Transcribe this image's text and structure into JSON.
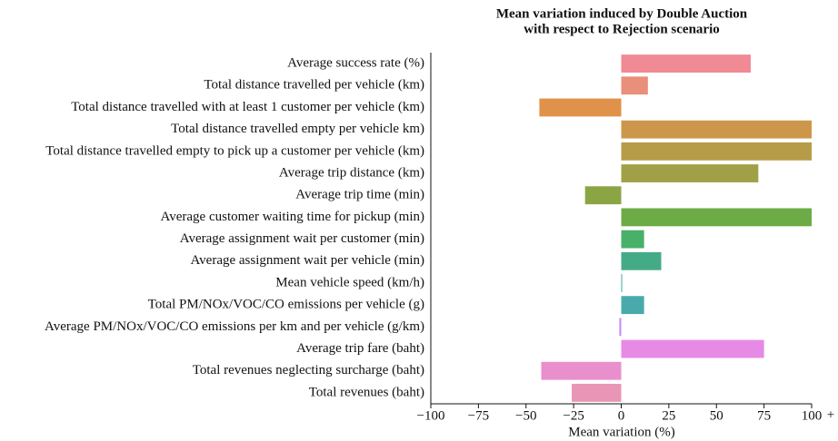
{
  "chart_data": {
    "type": "barh",
    "title": [
      "Mean variation induced by Double Auction",
      "with respect to Rejection scenario"
    ],
    "categories": [
      "Average success rate (%)",
      "Total distance travelled per vehicle (km)",
      "Total distance travelled with at least 1 customer per vehicle (km)",
      "Total distance travelled empty per vehicle km)",
      "Total distance travelled empty to pick up a customer per vehicle (km)",
      "Average trip distance (km)",
      "Average trip time (min)",
      "Average customer waiting time for pickup (min)",
      "Average assignment wait per customer (min)",
      "Average assignment wait per vehicle (min)",
      "Mean vehicle speed (km/h)",
      "Total PM/NOx/VOC/CO emissions per vehicle (g)",
      "Average PM/NOx/VOC/CO emissions per km and per vehicle (g/km)",
      "Average trip fare (baht)",
      "Total revenues neglecting surcharge (baht)",
      "Total revenues (baht)"
    ],
    "values": [
      68,
      14,
      -43,
      100,
      100,
      72,
      -19,
      100,
      12,
      21,
      0.5,
      12,
      -1,
      75,
      -42,
      -26
    ],
    "colors": [
      "#f08a94",
      "#e9907a",
      "#e0914a",
      "#cc974a",
      "#b69c48",
      "#a2a047",
      "#8ba545",
      "#6cab45",
      "#48b068",
      "#45ab86",
      "#49ab9e",
      "#4aaaab",
      "#c88df0",
      "#e68ae6",
      "#e98fcc",
      "#e996b6"
    ],
    "xlabel": "Mean variation (%)",
    "annotation": "+",
    "xlim": [
      -100,
      100
    ],
    "xticks": [
      {
        "value": -100,
        "label": "−100"
      },
      {
        "value": -75,
        "label": "−75"
      },
      {
        "value": -50,
        "label": "−50"
      },
      {
        "value": -25,
        "label": "−25"
      },
      0,
      25,
      50,
      75,
      100
    ]
  }
}
